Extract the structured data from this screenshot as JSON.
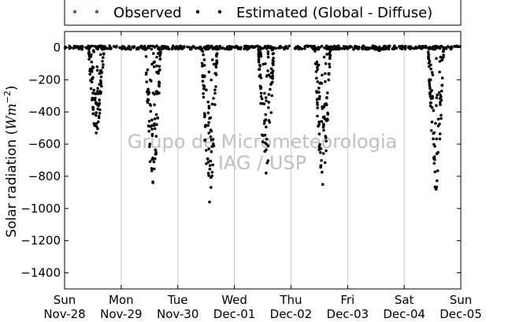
{
  "chart_data": {
    "type": "scatter",
    "ylabel": "Solar radiation (",
    "ylabel_unit": "Wm",
    "ylabel_exp": "−2",
    "ylabel_close": ")",
    "ylim": [
      -1500,
      100
    ],
    "yticks": [
      0,
      -200,
      -400,
      -600,
      -800,
      -1000,
      -1200,
      -1400
    ],
    "ytick_labels": [
      "0",
      "−200",
      "−400",
      "−600",
      "−800",
      "−1000",
      "−1200",
      "−1400"
    ],
    "x_start": "2010-11-28",
    "x_end": "2010-12-05",
    "xticks": [
      {
        "day": "Sun",
        "date": "Nov-28"
      },
      {
        "day": "Mon",
        "date": "Nov-29"
      },
      {
        "day": "Tue",
        "date": "Nov-30"
      },
      {
        "day": "Wed",
        "date": "Dec-01"
      },
      {
        "day": "Thu",
        "date": "Dec-02"
      },
      {
        "day": "Fri",
        "date": "Dec-03"
      },
      {
        "day": "Sat",
        "date": "Dec-04"
      },
      {
        "day": "Sun",
        "date": "Dec-05"
      }
    ],
    "grid": "vertical",
    "legend": "top",
    "series": [
      {
        "name": "Observed",
        "color": "#228b22",
        "values": []
      },
      {
        "name": "Estimated (Global - Diffuse)",
        "color": "#000000",
        "daily_min": [
          -530,
          -840,
          -960,
          -780,
          -850,
          -20,
          -880
        ]
      }
    ],
    "watermark": [
      "Grupo de Micrometeorologia",
      "IAG / USP"
    ]
  }
}
